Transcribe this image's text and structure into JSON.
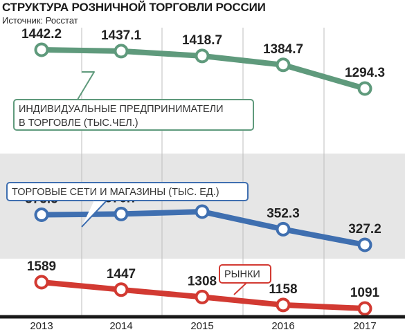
{
  "header": {
    "title": "СТРУКТУРА РОЗНИЧНОЙ ТОРГОВЛИ РОССИИ",
    "source": "Источник: Росстат"
  },
  "colors": {
    "green": "#5f9a7c",
    "blue": "#3f6fb0",
    "red": "#d23a32",
    "band": "#e6e6e6",
    "axis": "#1a1a1a"
  },
  "chart_data": {
    "type": "line",
    "categories": [
      "2013",
      "2014",
      "2015",
      "2016",
      "2017"
    ],
    "series": [
      {
        "name": "ИНДИВИДУАЛЬНЫЕ ПРЕДПРИНИМАТЕЛИ В ТОРГОВЛЕ (ТЫС.ЧЕЛ.)",
        "label_lines": [
          "ИНДИВИДУАЛЬНЫЕ ПРЕДПРИНИМАТЕЛИ",
          "В ТОРГОВЛЕ (ТЫС.ЧЕЛ.)"
        ],
        "color": "#5f9a7c",
        "values": [
          1442.2,
          1437.1,
          1418.7,
          1384.7,
          1294.3
        ],
        "labels": [
          "1442.2",
          "1437.1",
          "1418.7",
          "1384.7",
          "1294.3"
        ]
      },
      {
        "name": "ТОРГОВЫЕ СЕТИ И МАГАЗИНЫ (ТЫС. ЕД.)",
        "label_lines": [
          "ТОРГОВЫЕ СЕТИ И МАГАЗИНЫ (ТЫС. ЕД.)"
        ],
        "color": "#3f6fb0",
        "values": [
          375.5,
          376.7,
          380.5,
          352.3,
          327.2
        ],
        "labels": [
          "375.5",
          "376.7",
          "380.5",
          "352.3",
          "327.2"
        ]
      },
      {
        "name": "РЫНКИ",
        "label_lines": [
          "РЫНКИ"
        ],
        "color": "#d23a32",
        "values": [
          1589,
          1447,
          1308,
          1158,
          1091
        ],
        "labels": [
          "1589",
          "1447",
          "1308",
          "1158",
          "1091"
        ]
      }
    ],
    "grid": true,
    "legend": "callouts"
  }
}
